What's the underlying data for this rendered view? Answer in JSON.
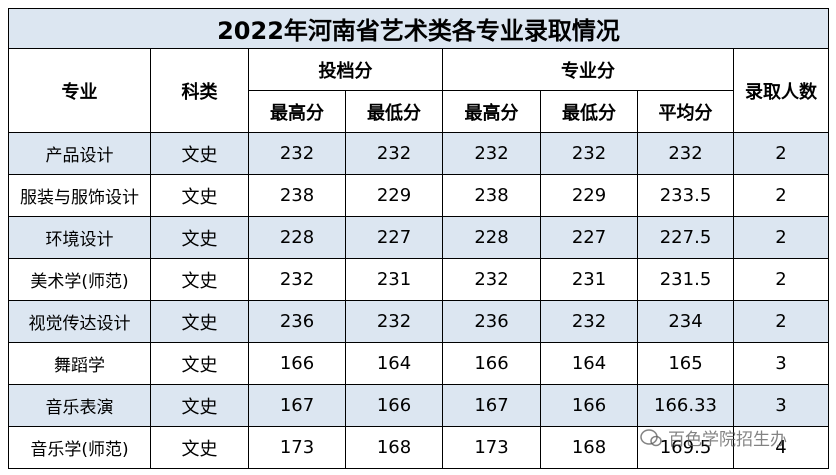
{
  "table": {
    "title": "2022年河南省艺术类各专业录取情况",
    "headers": {
      "major": "专业",
      "category": "科类",
      "tou": "投档分",
      "zhuan": "专业分",
      "count": "录取人数",
      "sub": [
        "最高分",
        "最低分",
        "最高分",
        "最低分",
        "平均分"
      ]
    },
    "rows": [
      [
        "产品设计",
        "文史",
        232,
        232,
        232,
        232,
        232,
        2
      ],
      [
        "服装与服饰设计",
        "文史",
        238,
        229,
        238,
        229,
        233.5,
        2
      ],
      [
        "环境设计",
        "文史",
        228,
        227,
        228,
        227,
        227.5,
        2
      ],
      [
        "美术学(师范)",
        "文史",
        232,
        231,
        232,
        231,
        231.5,
        2
      ],
      [
        "视觉传达设计",
        "文史",
        236,
        232,
        236,
        232,
        234,
        2
      ],
      [
        "舞蹈学",
        "文史",
        166,
        164,
        166,
        164,
        165,
        3
      ],
      [
        "音乐表演",
        "文史",
        167,
        166,
        167,
        166,
        166.33,
        3
      ],
      [
        "音乐学(师范)",
        "文史",
        173,
        168,
        173,
        168,
        169.5,
        4
      ]
    ]
  },
  "watermark": "百色学院招生办"
}
